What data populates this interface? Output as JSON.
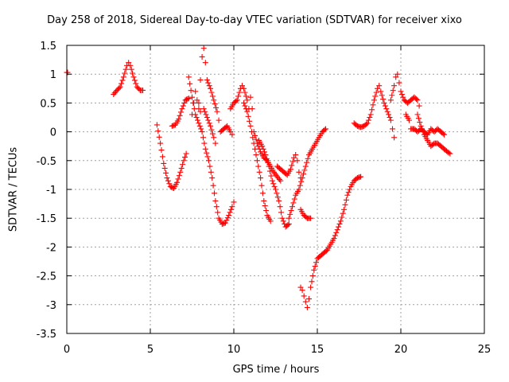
{
  "chart_data": {
    "type": "scatter",
    "title": "Day 258 of 2018, Sidereal Day-to-day VTEC variation (SDTVAR) for receiver xixo",
    "xlabel": "GPS time / hours",
    "ylabel": "SDTVAR / TECUs",
    "xlim": [
      0,
      25
    ],
    "ylim": [
      -3.5,
      1.5
    ],
    "xticks": [
      0,
      5,
      10,
      15,
      20,
      25
    ],
    "yticks": [
      -3.5,
      -3,
      -2.5,
      -2,
      -1.5,
      -1,
      -0.5,
      0,
      0.5,
      1,
      1.5
    ],
    "xtick_labels": [
      "0",
      "5",
      "10",
      "15",
      "20",
      "25"
    ],
    "ytick_labels": [
      "-3.5",
      "-3",
      "-2.5",
      "-2",
      "-1.5",
      "-1",
      "-0.5",
      "0",
      "0.5",
      "1",
      "1.5"
    ],
    "grid": true,
    "marker": "+",
    "color": "#ff0000",
    "series": [
      {
        "points": [
          [
            0.0,
            1.03
          ],
          [
            0.05,
            1.03
          ]
        ]
      },
      {
        "points": [
          [
            2.8,
            0.65
          ],
          [
            3.0,
            0.72
          ],
          [
            3.2,
            0.78
          ],
          [
            3.4,
            0.95
          ],
          [
            3.6,
            1.15
          ],
          [
            3.7,
            1.2
          ],
          [
            3.8,
            1.15
          ],
          [
            4.0,
            0.95
          ],
          [
            4.2,
            0.78
          ],
          [
            4.4,
            0.72
          ],
          [
            4.55,
            0.72
          ]
        ]
      },
      {
        "points": [
          [
            5.4,
            0.12
          ],
          [
            5.6,
            -0.2
          ],
          [
            5.8,
            -0.55
          ],
          [
            6.0,
            -0.8
          ],
          [
            6.2,
            -0.95
          ],
          [
            6.4,
            -0.98
          ],
          [
            6.6,
            -0.88
          ],
          [
            6.8,
            -0.7
          ],
          [
            7.0,
            -0.5
          ],
          [
            7.15,
            -0.38
          ]
        ]
      },
      {
        "points": [
          [
            6.3,
            0.1
          ],
          [
            6.5,
            0.12
          ],
          [
            6.7,
            0.22
          ],
          [
            6.9,
            0.4
          ],
          [
            7.1,
            0.55
          ],
          [
            7.3,
            0.58
          ]
        ]
      },
      {
        "points": [
          [
            7.3,
            0.95
          ],
          [
            7.5,
            0.6
          ],
          [
            7.7,
            0.3
          ],
          [
            7.9,
            0.15
          ],
          [
            8.1,
            0.0
          ],
          [
            8.3,
            -0.3
          ],
          [
            8.5,
            -0.5
          ],
          [
            8.7,
            -0.8
          ],
          [
            8.9,
            -1.2
          ],
          [
            9.1,
            -1.5
          ],
          [
            9.3,
            -1.6
          ],
          [
            9.5,
            -1.58
          ],
          [
            9.7,
            -1.45
          ],
          [
            9.9,
            -1.3
          ],
          [
            10.0,
            -1.22
          ]
        ]
      },
      {
        "points": [
          [
            7.5,
            0.3
          ],
          [
            7.6,
            0.5
          ],
          [
            7.7,
            0.7
          ],
          [
            7.8,
            0.55
          ],
          [
            7.9,
            0.4
          ],
          [
            8.0,
            0.35
          ]
        ]
      },
      {
        "points": [
          [
            7.9,
            0.5
          ],
          [
            8.0,
            0.9
          ],
          [
            8.1,
            1.3
          ],
          [
            8.2,
            1.45
          ],
          [
            8.3,
            1.2
          ],
          [
            8.4,
            0.9
          ],
          [
            8.6,
            0.75
          ],
          [
            8.8,
            0.55
          ],
          [
            9.0,
            0.35
          ],
          [
            9.1,
            0.2
          ]
        ]
      },
      {
        "points": [
          [
            8.2,
            0.4
          ],
          [
            8.4,
            0.25
          ],
          [
            8.6,
            0.1
          ],
          [
            8.8,
            -0.1
          ],
          [
            8.9,
            -0.2
          ]
        ]
      },
      {
        "points": [
          [
            9.2,
            0.0
          ],
          [
            9.4,
            0.05
          ],
          [
            9.6,
            0.1
          ],
          [
            9.8,
            0.0
          ],
          [
            9.9,
            -0.05
          ]
        ]
      },
      {
        "points": [
          [
            9.8,
            0.4
          ],
          [
            10.0,
            0.5
          ],
          [
            10.2,
            0.55
          ],
          [
            10.4,
            0.75
          ],
          [
            10.5,
            0.8
          ],
          [
            10.6,
            0.75
          ],
          [
            10.8,
            0.55
          ],
          [
            10.9,
            0.4
          ]
        ]
      },
      {
        "points": [
          [
            10.6,
            0.5
          ],
          [
            10.8,
            0.35
          ],
          [
            11.0,
            0.1
          ],
          [
            11.2,
            -0.2
          ],
          [
            11.4,
            -0.5
          ],
          [
            11.6,
            -0.8
          ],
          [
            11.8,
            -1.2
          ],
          [
            12.0,
            -1.45
          ],
          [
            12.2,
            -1.55
          ]
        ]
      },
      {
        "points": [
          [
            11.0,
            0.6
          ],
          [
            11.1,
            0.4
          ],
          [
            11.2,
            0.0
          ],
          [
            11.4,
            -0.2
          ],
          [
            11.6,
            -0.35
          ],
          [
            11.8,
            -0.45
          ],
          [
            12.0,
            -0.5
          ],
          [
            12.2,
            -0.6
          ],
          [
            12.4,
            -0.7
          ],
          [
            12.6,
            -0.78
          ],
          [
            12.8,
            -0.85
          ]
        ]
      },
      {
        "points": [
          [
            11.5,
            -0.15
          ],
          [
            11.7,
            -0.25
          ],
          [
            11.9,
            -0.4
          ],
          [
            12.1,
            -0.6
          ],
          [
            12.3,
            -0.85
          ],
          [
            12.5,
            -1.0
          ],
          [
            12.7,
            -1.2
          ],
          [
            12.9,
            -1.5
          ],
          [
            13.1,
            -1.65
          ],
          [
            13.3,
            -1.6
          ]
        ]
      },
      {
        "points": [
          [
            12.6,
            -0.6
          ],
          [
            12.8,
            -0.65
          ],
          [
            13.0,
            -0.7
          ],
          [
            13.2,
            -0.75
          ],
          [
            13.4,
            -0.65
          ],
          [
            13.6,
            -0.45
          ],
          [
            13.7,
            -0.4
          ],
          [
            13.8,
            -0.5
          ],
          [
            13.9,
            -0.7
          ],
          [
            14.0,
            -0.8
          ]
        ]
      },
      {
        "points": [
          [
            13.3,
            -1.5
          ],
          [
            13.5,
            -1.3
          ],
          [
            13.7,
            -1.1
          ],
          [
            13.9,
            -1.0
          ],
          [
            14.1,
            -0.8
          ],
          [
            14.3,
            -0.6
          ],
          [
            14.5,
            -0.4
          ],
          [
            14.7,
            -0.3
          ],
          [
            14.9,
            -0.2
          ],
          [
            15.1,
            -0.1
          ],
          [
            15.3,
            0.0
          ],
          [
            15.5,
            0.05
          ]
        ]
      },
      {
        "points": [
          [
            14.0,
            -1.35
          ],
          [
            14.2,
            -1.45
          ],
          [
            14.4,
            -1.5
          ],
          [
            14.6,
            -1.5
          ]
        ]
      },
      {
        "points": [
          [
            14.0,
            -2.7
          ],
          [
            14.1,
            -2.75
          ],
          [
            14.2,
            -2.85
          ],
          [
            14.3,
            -2.95
          ],
          [
            14.4,
            -3.05
          ],
          [
            14.5,
            -2.9
          ],
          [
            14.6,
            -2.7
          ],
          [
            14.8,
            -2.4
          ],
          [
            15.0,
            -2.2
          ],
          [
            15.2,
            -2.15
          ],
          [
            15.4,
            -2.1
          ],
          [
            15.6,
            -2.05
          ],
          [
            15.8,
            -1.95
          ],
          [
            16.0,
            -1.85
          ],
          [
            16.2,
            -1.7
          ],
          [
            16.4,
            -1.55
          ],
          [
            16.6,
            -1.35
          ],
          [
            16.8,
            -1.1
          ],
          [
            17.0,
            -0.95
          ],
          [
            17.2,
            -0.85
          ],
          [
            17.4,
            -0.8
          ],
          [
            17.6,
            -0.78
          ]
        ]
      },
      {
        "points": [
          [
            17.2,
            0.15
          ],
          [
            17.4,
            0.1
          ],
          [
            17.6,
            0.08
          ],
          [
            17.8,
            0.1
          ],
          [
            18.0,
            0.15
          ],
          [
            18.2,
            0.3
          ],
          [
            18.4,
            0.55
          ],
          [
            18.6,
            0.75
          ],
          [
            18.7,
            0.8
          ],
          [
            18.8,
            0.7
          ],
          [
            19.0,
            0.5
          ],
          [
            19.2,
            0.35
          ],
          [
            19.4,
            0.2
          ],
          [
            19.5,
            0.05
          ],
          [
            19.6,
            -0.1
          ]
        ]
      },
      {
        "points": [
          [
            19.4,
            0.55
          ],
          [
            19.6,
            0.8
          ],
          [
            19.7,
            0.95
          ],
          [
            19.8,
            1.0
          ],
          [
            19.9,
            0.85
          ],
          [
            20.0,
            0.7
          ],
          [
            20.2,
            0.55
          ],
          [
            20.4,
            0.5
          ],
          [
            20.6,
            0.55
          ],
          [
            20.8,
            0.6
          ],
          [
            21.0,
            0.55
          ],
          [
            21.1,
            0.45
          ]
        ]
      },
      {
        "points": [
          [
            20.3,
            0.3
          ],
          [
            20.5,
            0.2
          ],
          [
            20.6,
            0.05
          ],
          [
            20.8,
            0.05
          ],
          [
            21.0,
            0.0
          ],
          [
            21.2,
            0.05
          ],
          [
            21.4,
            0.0
          ],
          [
            21.6,
            -0.05
          ],
          [
            21.8,
            0.05
          ],
          [
            22.0,
            0.0
          ],
          [
            22.2,
            0.05
          ],
          [
            22.4,
            0.0
          ],
          [
            22.6,
            -0.05
          ]
        ]
      },
      {
        "points": [
          [
            21.0,
            0.3
          ],
          [
            21.2,
            0.1
          ],
          [
            21.4,
            -0.05
          ],
          [
            21.6,
            -0.15
          ],
          [
            21.8,
            -0.25
          ],
          [
            22.0,
            -0.2
          ],
          [
            22.2,
            -0.2
          ],
          [
            22.4,
            -0.25
          ],
          [
            22.6,
            -0.3
          ],
          [
            22.8,
            -0.35
          ],
          [
            22.95,
            -0.38
          ]
        ]
      }
    ]
  }
}
